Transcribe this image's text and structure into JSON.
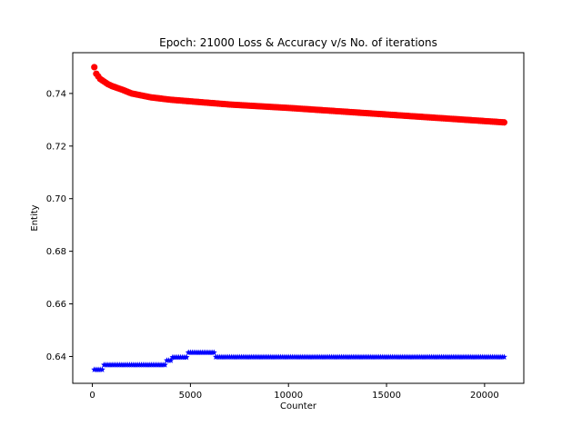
{
  "chart_data": {
    "type": "scatter",
    "title": "Epoch: 21000 Loss & Accuracy v/s No. of iterations",
    "xlabel": "Counter",
    "ylabel": "Entity",
    "xlim": [
      -1000,
      22000
    ],
    "ylim": [
      0.6298,
      0.7555
    ],
    "xticks": [
      0,
      5000,
      10000,
      15000,
      20000
    ],
    "yticks": [
      0.64,
      0.66,
      0.68,
      0.7,
      0.72,
      0.74
    ],
    "ytick_labels": [
      "0.64",
      "0.66",
      "0.68",
      "0.70",
      "0.72",
      "0.74"
    ],
    "x_start": 100,
    "x_step": 100,
    "x_end": 21000,
    "series": [
      {
        "color": "#ff0000",
        "marker": "circle",
        "knots": [
          [
            100,
            0.75
          ],
          [
            200,
            0.7475
          ],
          [
            300,
            0.7465
          ],
          [
            400,
            0.7455
          ],
          [
            600,
            0.7445
          ],
          [
            800,
            0.7435
          ],
          [
            1000,
            0.7428
          ],
          [
            1500,
            0.7415
          ],
          [
            2000,
            0.74
          ],
          [
            3000,
            0.7385
          ],
          [
            4000,
            0.7376
          ],
          [
            5000,
            0.737
          ],
          [
            7000,
            0.7358
          ],
          [
            10000,
            0.7345
          ],
          [
            12000,
            0.7335
          ],
          [
            15000,
            0.732
          ],
          [
            18000,
            0.7305
          ],
          [
            20000,
            0.7295
          ],
          [
            21000,
            0.729
          ]
        ]
      },
      {
        "color": "#0000ff",
        "marker": "star",
        "steps": [
          [
            100,
            0.635
          ],
          [
            600,
            0.6368
          ],
          [
            3800,
            0.6385
          ],
          [
            4100,
            0.6397
          ],
          [
            4900,
            0.6415
          ],
          [
            6300,
            0.6398
          ]
        ]
      }
    ]
  }
}
